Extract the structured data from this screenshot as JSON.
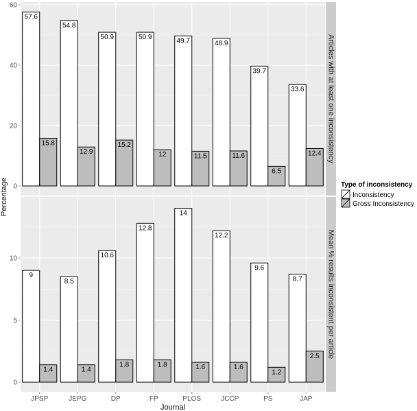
{
  "chart_data": {
    "type": "bar",
    "xlabel": "Journal",
    "ylabel": "Percentage",
    "categories": [
      "JPSP",
      "JEPG",
      "DP",
      "FP",
      "PLOS",
      "JCCP",
      "PS",
      "JAP"
    ],
    "legend": {
      "title": "Type of inconsistency",
      "placement": "right",
      "entries": [
        {
          "name": "Inconsistency",
          "color": "#ffffff"
        },
        {
          "name": "Gross Inconsistency",
          "color": "#bdbdbd"
        }
      ]
    },
    "panels": [
      {
        "strip_label": "Articles with at least one inconsistency",
        "ylim": [
          0,
          60
        ],
        "yticks": [
          0,
          20,
          40,
          60
        ],
        "series": [
          {
            "name": "Inconsistency",
            "values": [
              57.6,
              54.8,
              50.9,
              50.9,
              49.7,
              48.9,
              39.7,
              33.6
            ],
            "labels": [
              "57.6",
              "54.8",
              "50.9",
              "50.9",
              "49.7",
              "48.9",
              "39.7",
              "33.6"
            ]
          },
          {
            "name": "Gross Inconsistency",
            "values": [
              15.8,
              12.9,
              15.2,
              12,
              11.5,
              11.6,
              6.5,
              12.4
            ],
            "labels": [
              "15.8",
              "12.9",
              "15.2",
              "12",
              "11.5",
              "11.6",
              "6.5",
              "12.4"
            ]
          }
        ]
      },
      {
        "strip_label": "Mean % results inconsistent per article",
        "ylim": [
          0,
          14.7
        ],
        "yticks": [
          0,
          5,
          10
        ],
        "series": [
          {
            "name": "Inconsistency",
            "values": [
              9,
              8.5,
              10.6,
              12.8,
              14,
              12.2,
              9.6,
              8.7
            ],
            "labels": [
              "9",
              "8.5",
              "10.6",
              "12.8",
              "14",
              "12.2",
              "9.6",
              "8.7"
            ]
          },
          {
            "name": "Gross Inconsistency",
            "values": [
              1.4,
              1.4,
              1.8,
              1.8,
              1.6,
              1.6,
              1.2,
              2.5
            ],
            "labels": [
              "1.4",
              "1.4",
              "1.8",
              "1.8",
              "1.6",
              "1.6",
              "1.2",
              "2.5"
            ]
          }
        ]
      }
    ]
  }
}
